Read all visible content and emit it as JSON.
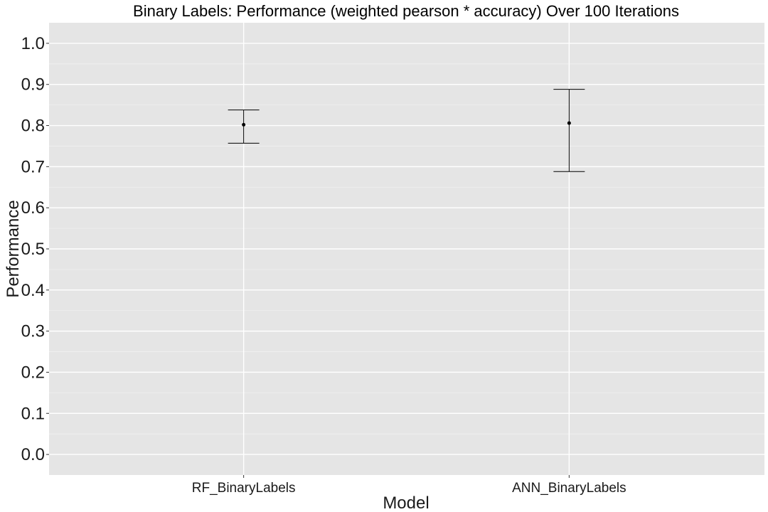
{
  "chart_data": {
    "type": "scatter",
    "title": "Binary Labels: Performance (weighted pearson * accuracy) Over 100 Iterations",
    "xlabel": "Model",
    "ylabel": "Performance",
    "categories": [
      "RF_BinaryLabels",
      "ANN_BinaryLabels"
    ],
    "ylim": [
      -0.05,
      1.05
    ],
    "yticks": [
      0.0,
      0.1,
      0.2,
      0.3,
      0.4,
      0.5,
      0.6,
      0.7,
      0.8,
      0.9,
      1.0
    ],
    "ytick_labels": [
      "0.0",
      "0.1",
      "0.2",
      "0.3",
      "0.4",
      "0.5",
      "0.6",
      "0.7",
      "0.8",
      "0.9",
      "1.0"
    ],
    "points": [
      {
        "category": "RF_BinaryLabels",
        "mean": 0.802,
        "lower": 0.757,
        "upper": 0.838
      },
      {
        "category": "ANN_BinaryLabels",
        "mean": 0.806,
        "lower": 0.688,
        "upper": 0.888
      }
    ],
    "grid": true,
    "legend": "none",
    "colors": {
      "panel_background": "#e5e5e5",
      "grid_major": "#ffffff",
      "grid_minor": "#f0f0f0",
      "mark": "#000000",
      "text": "#1a1a1a"
    }
  }
}
